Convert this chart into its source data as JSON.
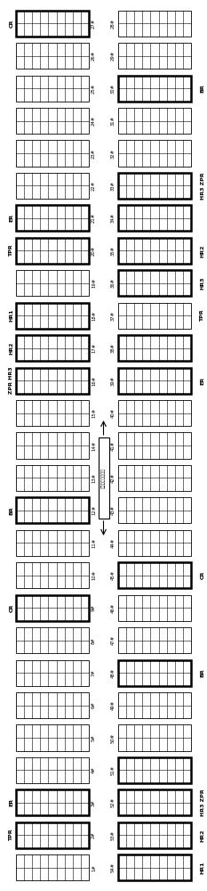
{
  "left_column_numbers": [
    27,
    26,
    25,
    24,
    23,
    22,
    21,
    20,
    19,
    18,
    17,
    16,
    15,
    14,
    13,
    12,
    11,
    10,
    9,
    8,
    7,
    6,
    5,
    4,
    3,
    2,
    1
  ],
  "right_column_numbers": [
    28,
    29,
    30,
    31,
    32,
    33,
    34,
    35,
    36,
    37,
    38,
    39,
    40,
    41,
    42,
    43,
    44,
    45,
    46,
    47,
    48,
    49,
    50,
    51,
    52,
    53,
    54
  ],
  "bold_left_nums": [
    27,
    21,
    20,
    18,
    17,
    16,
    12,
    9,
    3,
    2
  ],
  "bold_right_nums": [
    30,
    33,
    34,
    35,
    36,
    38,
    39,
    45,
    48,
    51,
    52,
    53,
    54
  ],
  "left_side_labels": [
    {
      "text": "CR",
      "row": 0
    },
    {
      "text": "ER",
      "row": 6
    },
    {
      "text": "TPR",
      "row": 7
    },
    {
      "text": "HR1",
      "row": 9
    },
    {
      "text": "HR2",
      "row": 10
    },
    {
      "text": "ZPR HR3",
      "row": 11
    },
    {
      "text": "BR",
      "row": 15
    },
    {
      "text": "CR",
      "row": 18
    },
    {
      "text": "ER",
      "row": 24
    },
    {
      "text": "TPR",
      "row": 25
    }
  ],
  "right_side_labels": [
    {
      "text": "BR",
      "row": 2
    },
    {
      "text": "HR3 ZPR",
      "row": 5
    },
    {
      "text": "HR2",
      "row": 7
    },
    {
      "text": "HR3",
      "row": 8
    },
    {
      "text": "TPR",
      "row": 9
    },
    {
      "text": "ER",
      "row": 11
    },
    {
      "text": "CR",
      "row": 17
    },
    {
      "text": "BR",
      "row": 20
    },
    {
      "text": "HR3 ZPR",
      "row": 24
    },
    {
      "text": "HR2",
      "row": 25
    },
    {
      "text": "HR1",
      "row": 26
    }
  ],
  "num_cell_cols": 9,
  "num_cell_rows": 2,
  "annotation_text": "燃烧系统移动方向",
  "annotation_row": 14,
  "bg_color": "#ffffff"
}
